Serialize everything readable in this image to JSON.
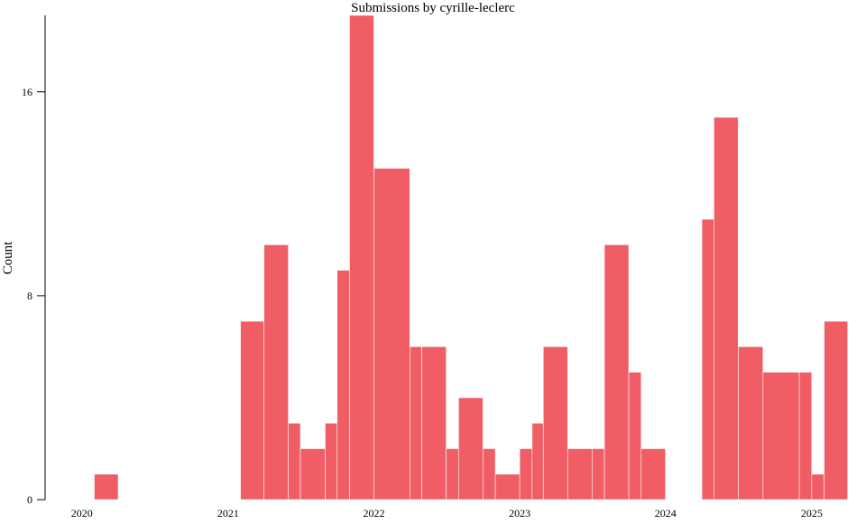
{
  "chart_data": {
    "type": "bar",
    "title": "Submissions by cyrille-leclerc",
    "xlabel": "",
    "ylabel": "Count",
    "bar_color": "#f05d64",
    "x_axis": {
      "type": "time",
      "range": [
        "2019-10-01",
        "2025-05-01"
      ],
      "ticks": [
        "2020",
        "2021",
        "2022",
        "2023",
        "2024",
        "2025"
      ]
    },
    "ylim": [
      0,
      19
    ],
    "yticks": [
      0,
      8,
      16
    ],
    "grid": false,
    "bars": [
      {
        "start": "2020-02-01",
        "end": "2020-04-01",
        "value": 1
      },
      {
        "start": "2021-02-01",
        "end": "2021-04-01",
        "value": 7
      },
      {
        "start": "2021-04-01",
        "end": "2021-06-01",
        "value": 10
      },
      {
        "start": "2021-06-01",
        "end": "2021-07-01",
        "value": 3
      },
      {
        "start": "2021-07-01",
        "end": "2021-09-01",
        "value": 2
      },
      {
        "start": "2021-09-01",
        "end": "2021-10-01",
        "value": 3
      },
      {
        "start": "2021-10-01",
        "end": "2021-11-01",
        "value": 9
      },
      {
        "start": "2021-11-01",
        "end": "2022-01-01",
        "value": 19
      },
      {
        "start": "2022-01-01",
        "end": "2022-04-01",
        "value": 13
      },
      {
        "start": "2022-04-01",
        "end": "2022-05-01",
        "value": 6
      },
      {
        "start": "2022-05-01",
        "end": "2022-07-01",
        "value": 6
      },
      {
        "start": "2022-07-01",
        "end": "2022-08-01",
        "value": 2
      },
      {
        "start": "2022-08-01",
        "end": "2022-10-01",
        "value": 4
      },
      {
        "start": "2022-10-01",
        "end": "2022-11-01",
        "value": 2
      },
      {
        "start": "2022-11-01",
        "end": "2023-01-01",
        "value": 1
      },
      {
        "start": "2023-01-01",
        "end": "2023-02-01",
        "value": 2
      },
      {
        "start": "2023-02-01",
        "end": "2023-03-01",
        "value": 3
      },
      {
        "start": "2023-03-01",
        "end": "2023-05-01",
        "value": 6
      },
      {
        "start": "2023-05-01",
        "end": "2023-07-01",
        "value": 2
      },
      {
        "start": "2023-07-01",
        "end": "2023-08-01",
        "value": 2
      },
      {
        "start": "2023-08-01",
        "end": "2023-10-01",
        "value": 10
      },
      {
        "start": "2023-10-01",
        "end": "2023-11-01",
        "value": 5
      },
      {
        "start": "2023-11-01",
        "end": "2024-01-01",
        "value": 2
      },
      {
        "start": "2024-04-01",
        "end": "2024-05-01",
        "value": 11
      },
      {
        "start": "2024-05-01",
        "end": "2024-07-01",
        "value": 15
      },
      {
        "start": "2024-07-01",
        "end": "2024-09-01",
        "value": 6
      },
      {
        "start": "2024-09-01",
        "end": "2024-12-01",
        "value": 5
      },
      {
        "start": "2024-12-01",
        "end": "2025-01-01",
        "value": 5
      },
      {
        "start": "2025-01-01",
        "end": "2025-02-01",
        "value": 1
      },
      {
        "start": "2025-02-01",
        "end": "2025-04-01",
        "value": 7
      }
    ]
  }
}
